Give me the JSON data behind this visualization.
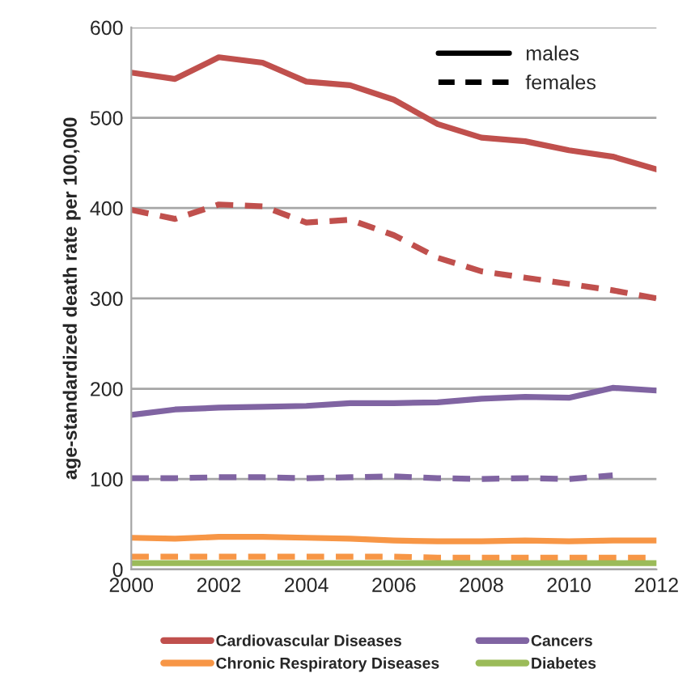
{
  "chart_data": {
    "type": "line",
    "ylabel": "age-standardized death rate per 100,000",
    "x": [
      2000,
      2001,
      2002,
      2003,
      2004,
      2005,
      2006,
      2007,
      2008,
      2009,
      2010,
      2011,
      2012
    ],
    "series": [
      {
        "name": "Cardiovascular Diseases",
        "color": "#c0504d",
        "line_style": "solid",
        "values": [
          550,
          543,
          567,
          561,
          540,
          536,
          520,
          493,
          478,
          474,
          464,
          457,
          443
        ]
      },
      {
        "color": "#c0504d",
        "line_style": "dashed",
        "values": [
          398,
          388,
          404,
          402,
          384,
          387,
          370,
          345,
          330,
          323,
          316,
          309,
          300
        ]
      },
      {
        "name": "Cancers",
        "color": "#8064a2",
        "line_style": "solid",
        "values": [
          171,
          177,
          179,
          180,
          181,
          184,
          184,
          185,
          189,
          191,
          190,
          201,
          198
        ]
      },
      {
        "color": "#8064a2",
        "line_style": "dashed",
        "values": [
          101,
          101,
          102,
          102,
          101,
          102,
          103,
          101,
          100,
          101,
          100,
          104,
          null
        ]
      },
      {
        "name": "Chronic Respiratory Diseases",
        "color": "#f79646",
        "line_style": "solid",
        "values": [
          35,
          34,
          36,
          36,
          35,
          34,
          32,
          31,
          31,
          32,
          31,
          32,
          32
        ]
      },
      {
        "color": "#f79646",
        "line_style": "dashed",
        "values": [
          14,
          14,
          14,
          14,
          14,
          14,
          14,
          13,
          13,
          13,
          13,
          13,
          13
        ]
      },
      {
        "name": "Diabetes",
        "color": "#9bbb59",
        "line_style": "solid",
        "values": [
          7,
          7,
          7,
          7,
          7,
          7,
          7,
          7,
          7,
          7,
          7,
          7,
          7
        ]
      }
    ],
    "annotations": [
      "males",
      "females"
    ],
    "xlim": [
      2000,
      2012
    ],
    "xticks": [
      2000,
      2002,
      2004,
      2006,
      2008,
      2010,
      2012
    ],
    "ylim": [
      0,
      600
    ],
    "yticks": [
      0,
      100,
      200,
      300,
      400,
      500,
      600
    ],
    "grid": "y",
    "legend": "bottom"
  }
}
